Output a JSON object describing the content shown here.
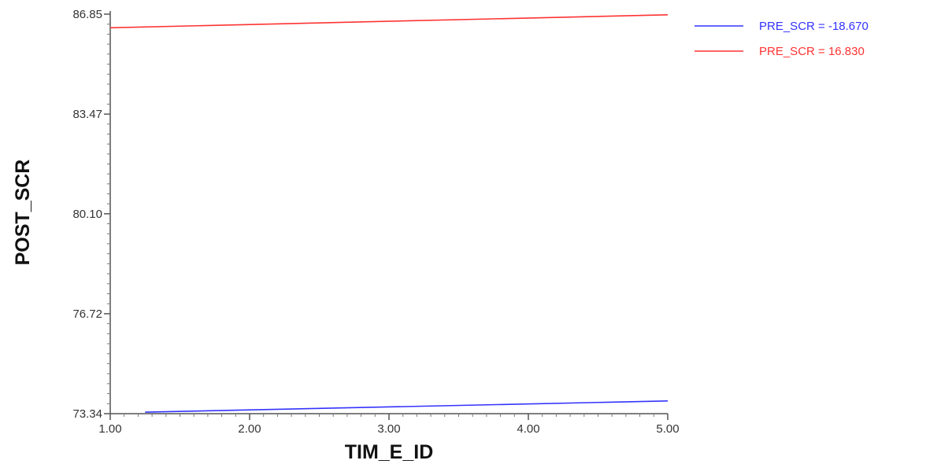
{
  "chart_data": {
    "type": "line",
    "title": "",
    "xlabel": "TIM_E_ID",
    "ylabel": "POST_SCR",
    "xlim": [
      1.0,
      5.0
    ],
    "ylim": [
      73.34,
      86.85
    ],
    "x_ticks": [
      "1.00",
      "2.00",
      "3.00",
      "4.00",
      "5.00"
    ],
    "y_ticks": [
      "73.34",
      "76.72",
      "80.10",
      "83.47",
      "86.85"
    ],
    "grid": false,
    "legend_position": "top-right",
    "series": [
      {
        "name": "PRE_SCR = -18.670",
        "color": "#3333ff",
        "x": [
          1.25,
          5.0
        ],
        "y": [
          73.39,
          73.77
        ]
      },
      {
        "name": "PRE_SCR = 16.830",
        "color": "#ff3333",
        "x": [
          1.0,
          5.0
        ],
        "y": [
          86.39,
          86.83
        ]
      }
    ]
  }
}
